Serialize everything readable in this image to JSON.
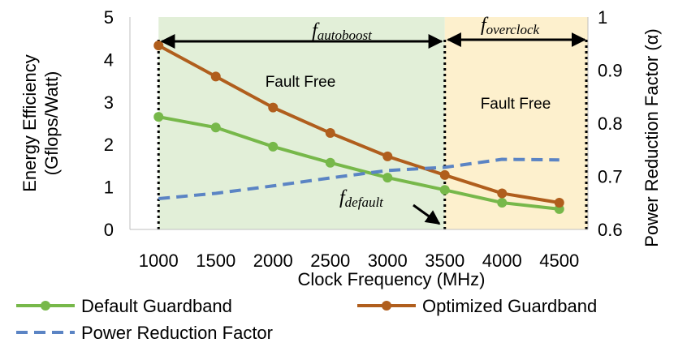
{
  "chart_data": {
    "type": "line",
    "x": [
      1000,
      1500,
      2000,
      2500,
      3000,
      3500,
      4000,
      4500
    ],
    "xlabel": "Clock Frequency (MHz)",
    "ylabel_left": [
      "Energy Efficiency",
      "(Gflops/Watt)"
    ],
    "ylabel_right": "Power Reduction Factor (α)",
    "ylim_left": [
      0,
      5
    ],
    "ylim_right": [
      0.6,
      1
    ],
    "xlim": [
      750,
      4750
    ],
    "yticks_left": [
      "0",
      "1",
      "2",
      "3",
      "4",
      "5"
    ],
    "yticks_right": [
      "0.6",
      "0.7",
      "0.8",
      "0.9",
      "1"
    ],
    "xticks": [
      "1000",
      "1500",
      "2000",
      "2500",
      "3000",
      "3500",
      "4000",
      "4500"
    ],
    "series": [
      {
        "name": "Default Guardband",
        "axis": "left",
        "color": "#77b84a",
        "marker": "circle",
        "values": [
          2.65,
          2.4,
          1.95,
          1.57,
          1.22,
          0.93,
          0.63,
          0.48
        ]
      },
      {
        "name": "Optimized Guardband",
        "axis": "left",
        "color": "#b05e1d",
        "marker": "circle",
        "values": [
          4.33,
          3.6,
          2.87,
          2.27,
          1.72,
          1.28,
          0.85,
          0.63
        ]
      },
      {
        "name": "Power Reduction Factor",
        "axis": "right",
        "color": "#5b84c4",
        "style": "dashed",
        "values": [
          0.658,
          0.668,
          0.682,
          0.697,
          0.711,
          0.717,
          0.732,
          0.731
        ]
      }
    ],
    "regions": [
      {
        "label": "Fault Free",
        "from": 1000,
        "to": 3500,
        "color": "#e2efd8"
      },
      {
        "label": "Fault Free",
        "from": 3500,
        "to": 4750,
        "color": "#fdf0cd"
      }
    ],
    "annotations": {
      "autoboost": {
        "base": "f",
        "sub": "autoboost",
        "from": 1000,
        "to": 3500
      },
      "overclock": {
        "base": "f",
        "sub": "overclock",
        "from": 3500,
        "to": 4750
      },
      "default": {
        "base": "f",
        "sub": "default",
        "at": 3500
      }
    },
    "legend_position": "bottom"
  }
}
